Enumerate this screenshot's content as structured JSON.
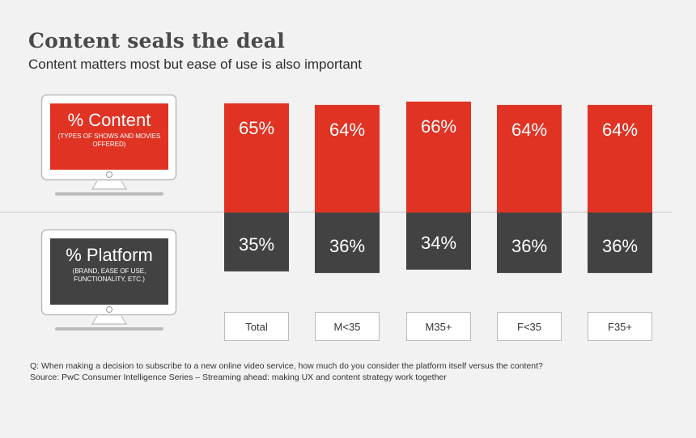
{
  "header": {
    "title": "Content seals the deal",
    "subtitle": "Content matters most but ease of use is also important"
  },
  "legend": {
    "content": {
      "label": "% Content",
      "sublabel": "(TYPES OF SHOWS AND MOVIES OFFERED)",
      "color": "#e03323",
      "icon": "tv-icon"
    },
    "platform": {
      "label": "% Platform",
      "sublabel": "(BRAND, EASE OF USE, FUNCTIONALITY, ETC.)",
      "color": "#424242",
      "icon": "tv-icon"
    }
  },
  "chart_data": {
    "type": "bar",
    "stacked": true,
    "categories": [
      "Total",
      "M<35",
      "M35+",
      "F<35",
      "F35+"
    ],
    "series": [
      {
        "name": "% Content",
        "values": [
          65,
          64,
          66,
          64,
          64
        ],
        "labels": [
          "65%",
          "64%",
          "66%",
          "64%",
          "64%"
        ]
      },
      {
        "name": "% Platform",
        "values": [
          35,
          36,
          34,
          36,
          36
        ],
        "labels": [
          "35%",
          "36%",
          "34%",
          "36%",
          "36%"
        ]
      }
    ],
    "ylim": [
      0,
      100
    ]
  },
  "footnotes": {
    "question": "Q: When making a decision to subscribe to a new online video service, how much do you consider the platform itself versus the content?",
    "source": "Source: PwC Consumer Intelligence Series – Streaming ahead: making UX and content strategy work together"
  }
}
